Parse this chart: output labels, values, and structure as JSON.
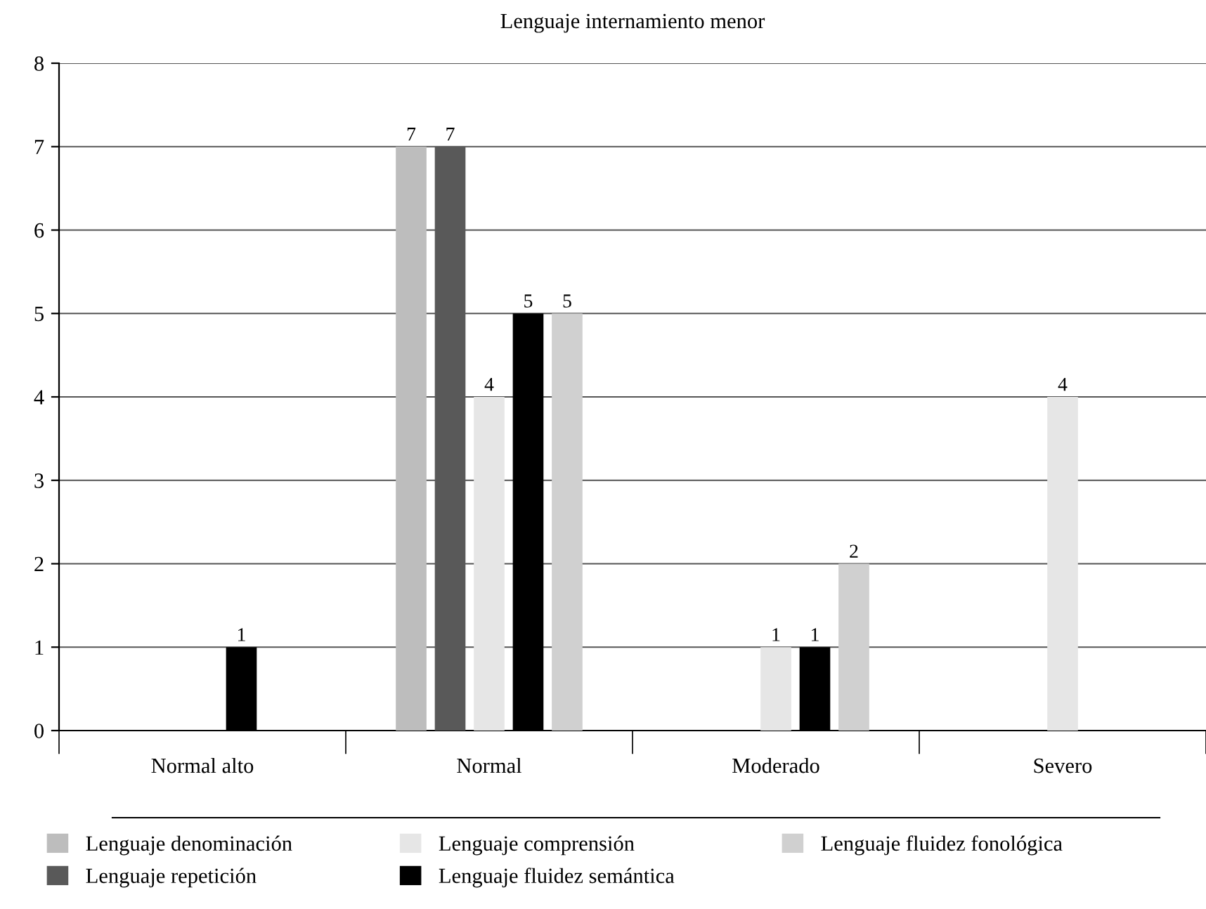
{
  "chart_data": {
    "type": "bar",
    "title": "Lenguaje internamiento menor",
    "categories": [
      "Normal alto",
      "Normal",
      "Moderado",
      "Severo"
    ],
    "series": [
      {
        "name": "Lenguaje denominación",
        "color": "#bdbdbd",
        "values": [
          0,
          7,
          0,
          0
        ],
        "value_labels": [
          null,
          "7",
          null,
          null
        ]
      },
      {
        "name": "Lenguaje repetición",
        "color": "#595959",
        "values": [
          0,
          7,
          0,
          0
        ],
        "value_labels": [
          null,
          "7",
          null,
          null
        ]
      },
      {
        "name": "Lenguaje comprensión",
        "color": "#e6e6e6",
        "values": [
          0,
          4,
          1,
          4
        ],
        "value_labels": [
          null,
          "4",
          "1",
          "4"
        ]
      },
      {
        "name": "Lenguaje fluidez semántica",
        "color": "#000000",
        "values": [
          1,
          5,
          1,
          0
        ],
        "value_labels": [
          "1",
          "5",
          "1",
          null
        ]
      },
      {
        "name": "Lenguaje fluidez fonológica",
        "color": "#d0d0d0",
        "values": [
          0,
          5,
          2,
          0
        ],
        "value_labels": [
          null,
          "5",
          "2",
          null
        ]
      }
    ],
    "ylim": [
      0,
      8
    ],
    "yticks": [
      0,
      1,
      2,
      3,
      4,
      5,
      6,
      7,
      8
    ],
    "grid": "y",
    "legend": "bottom"
  }
}
